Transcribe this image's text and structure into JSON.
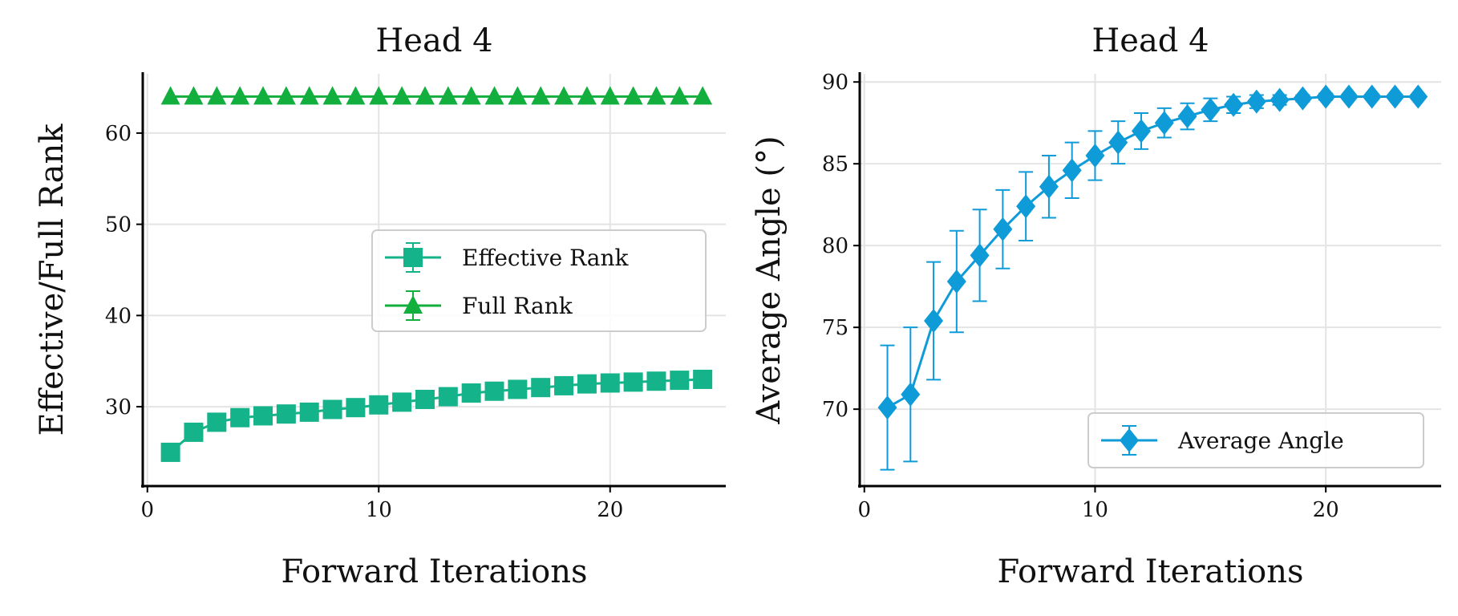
{
  "chart_data": [
    {
      "type": "line",
      "title": "Head 4",
      "xlabel": "Forward Iterations",
      "ylabel": "Effective/Full Rank",
      "xlim": [
        -0.2,
        25
      ],
      "ylim": [
        21.3,
        66.5
      ],
      "xticks": [
        0,
        10,
        20
      ],
      "yticks": [
        30,
        40,
        50,
        60
      ],
      "grid": true,
      "legend_position": "center-right",
      "x": [
        1,
        2,
        3,
        4,
        5,
        6,
        7,
        8,
        9,
        10,
        11,
        12,
        13,
        14,
        15,
        16,
        17,
        18,
        19,
        20,
        21,
        22,
        23,
        24
      ],
      "series": [
        {
          "name": "Effective Rank",
          "color": "#14b38a",
          "marker": "square",
          "values": [
            25.0,
            27.2,
            28.3,
            28.8,
            29.0,
            29.2,
            29.4,
            29.7,
            29.9,
            30.2,
            30.5,
            30.8,
            31.1,
            31.5,
            31.7,
            31.9,
            32.1,
            32.3,
            32.5,
            32.6,
            32.7,
            32.8,
            32.9,
            33.0
          ],
          "errors": [
            0.3,
            0.3,
            0.3,
            0.3,
            0.3,
            0.3,
            0.3,
            0.3,
            0.3,
            0.3,
            0.3,
            0.3,
            0.3,
            0.3,
            0.3,
            0.3,
            0.3,
            0.3,
            0.3,
            0.3,
            0.3,
            0.3,
            0.3,
            0.3
          ]
        },
        {
          "name": "Full Rank",
          "color": "#12ae3e",
          "marker": "triangle",
          "values": [
            64,
            64,
            64,
            64,
            64,
            64,
            64,
            64,
            64,
            64,
            64,
            64,
            64,
            64,
            64,
            64,
            64,
            64,
            64,
            64,
            64,
            64,
            64,
            64
          ],
          "errors": [
            0,
            0,
            0,
            0,
            0,
            0,
            0,
            0,
            0,
            0,
            0,
            0,
            0,
            0,
            0,
            0,
            0,
            0,
            0,
            0,
            0,
            0,
            0,
            0
          ]
        }
      ]
    },
    {
      "type": "line",
      "title": "Head 4",
      "xlabel": "Forward Iterations",
      "ylabel": "Average Angle (°)",
      "xlim": [
        -0.2,
        25
      ],
      "ylim": [
        65.3,
        90.5
      ],
      "xticks": [
        0,
        10,
        20
      ],
      "yticks": [
        70,
        75,
        80,
        85,
        90
      ],
      "grid": true,
      "legend_position": "lower-right",
      "x": [
        1,
        2,
        3,
        4,
        5,
        6,
        7,
        8,
        9,
        10,
        11,
        12,
        13,
        14,
        15,
        16,
        17,
        18,
        19,
        20,
        21,
        22,
        23,
        24
      ],
      "series": [
        {
          "name": "Average Angle",
          "color": "#0e9bd8",
          "marker": "diamond",
          "values": [
            70.1,
            70.9,
            75.4,
            77.8,
            79.4,
            81.0,
            82.4,
            83.6,
            84.6,
            85.5,
            86.3,
            87.0,
            87.5,
            87.9,
            88.3,
            88.6,
            88.8,
            88.9,
            89.0,
            89.1,
            89.1,
            89.1,
            89.1,
            89.1
          ],
          "errors": [
            3.8,
            4.1,
            3.6,
            3.1,
            2.8,
            2.4,
            2.1,
            1.9,
            1.7,
            1.5,
            1.3,
            1.1,
            0.9,
            0.8,
            0.7,
            0.5,
            0.4,
            0.3,
            0.2,
            0.2,
            0.1,
            0.1,
            0.1,
            0.1
          ]
        }
      ]
    }
  ]
}
